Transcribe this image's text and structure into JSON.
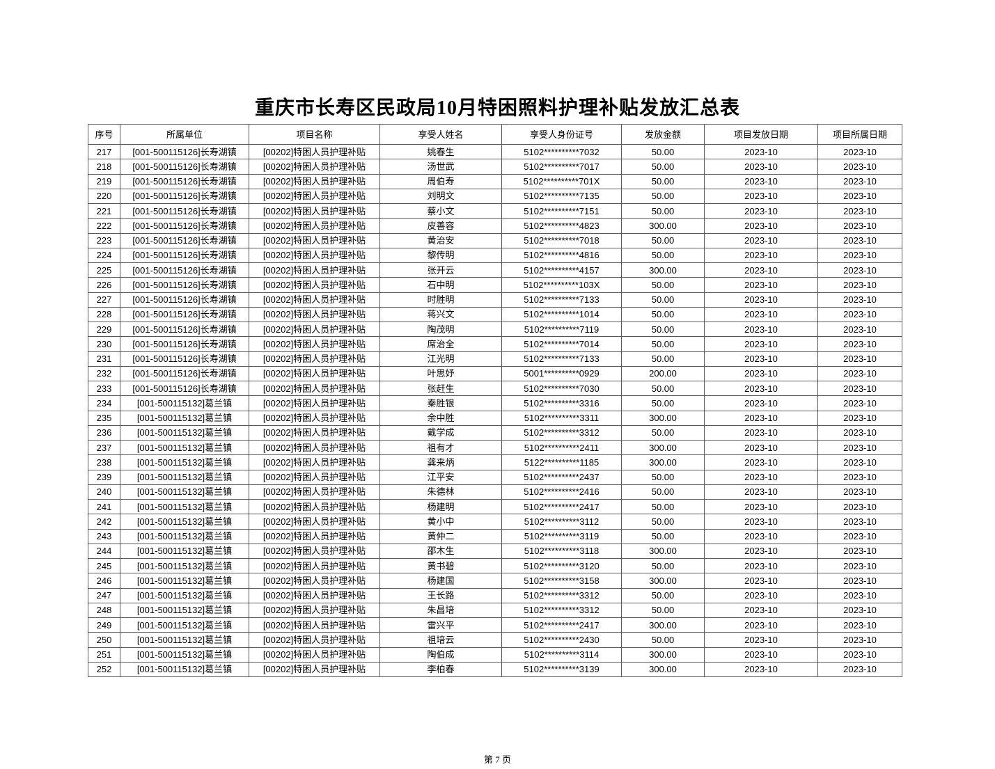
{
  "page": {
    "title": "重庆市长寿区民政局10月特困照料护理补贴发放汇总表",
    "footer": "第 7 页"
  },
  "table": {
    "headers": [
      "序号",
      "所属单位",
      "项目名称",
      "享受人姓名",
      "享受人身份证号",
      "发放金额",
      "项目发放日期",
      "项目所属日期"
    ],
    "rows": [
      [
        "217",
        "[001-500115126]长寿湖镇",
        "[00202]特困人员护理补贴",
        "姚春生",
        "5102**********7032",
        "50.00",
        "2023-10",
        "2023-10"
      ],
      [
        "218",
        "[001-500115126]长寿湖镇",
        "[00202]特困人员护理补贴",
        "汤世武",
        "5102**********7017",
        "50.00",
        "2023-10",
        "2023-10"
      ],
      [
        "219",
        "[001-500115126]长寿湖镇",
        "[00202]特困人员护理补贴",
        "周伯寿",
        "5102**********701X",
        "50.00",
        "2023-10",
        "2023-10"
      ],
      [
        "220",
        "[001-500115126]长寿湖镇",
        "[00202]特困人员护理补贴",
        "刘明文",
        "5102**********7135",
        "50.00",
        "2023-10",
        "2023-10"
      ],
      [
        "221",
        "[001-500115126]长寿湖镇",
        "[00202]特困人员护理补贴",
        "蔡小文",
        "5102**********7151",
        "50.00",
        "2023-10",
        "2023-10"
      ],
      [
        "222",
        "[001-500115126]长寿湖镇",
        "[00202]特困人员护理补贴",
        "皮善容",
        "5102**********4823",
        "300.00",
        "2023-10",
        "2023-10"
      ],
      [
        "223",
        "[001-500115126]长寿湖镇",
        "[00202]特困人员护理补贴",
        "黄治安",
        "5102**********7018",
        "50.00",
        "2023-10",
        "2023-10"
      ],
      [
        "224",
        "[001-500115126]长寿湖镇",
        "[00202]特困人员护理补贴",
        "黎传明",
        "5102**********4816",
        "50.00",
        "2023-10",
        "2023-10"
      ],
      [
        "225",
        "[001-500115126]长寿湖镇",
        "[00202]特困人员护理补贴",
        "张开云",
        "5102**********4157",
        "300.00",
        "2023-10",
        "2023-10"
      ],
      [
        "226",
        "[001-500115126]长寿湖镇",
        "[00202]特困人员护理补贴",
        "石中明",
        "5102**********103X",
        "50.00",
        "2023-10",
        "2023-10"
      ],
      [
        "227",
        "[001-500115126]长寿湖镇",
        "[00202]特困人员护理补贴",
        "时胜明",
        "5102**********7133",
        "50.00",
        "2023-10",
        "2023-10"
      ],
      [
        "228",
        "[001-500115126]长寿湖镇",
        "[00202]特困人员护理补贴",
        "蒋兴文",
        "5102**********1014",
        "50.00",
        "2023-10",
        "2023-10"
      ],
      [
        "229",
        "[001-500115126]长寿湖镇",
        "[00202]特困人员护理补贴",
        "陶茂明",
        "5102**********7119",
        "50.00",
        "2023-10",
        "2023-10"
      ],
      [
        "230",
        "[001-500115126]长寿湖镇",
        "[00202]特困人员护理补贴",
        "席治全",
        "5102**********7014",
        "50.00",
        "2023-10",
        "2023-10"
      ],
      [
        "231",
        "[001-500115126]长寿湖镇",
        "[00202]特困人员护理补贴",
        "江光明",
        "5102**********7133",
        "50.00",
        "2023-10",
        "2023-10"
      ],
      [
        "232",
        "[001-500115126]长寿湖镇",
        "[00202]特困人员护理补贴",
        "叶思妤",
        "5001**********0929",
        "200.00",
        "2023-10",
        "2023-10"
      ],
      [
        "233",
        "[001-500115126]长寿湖镇",
        "[00202]特困人员护理补贴",
        "张赶生",
        "5102**********7030",
        "50.00",
        "2023-10",
        "2023-10"
      ],
      [
        "234",
        "[001-500115132]葛兰镇",
        "[00202]特困人员护理补贴",
        "秦胜银",
        "5102**********3316",
        "50.00",
        "2023-10",
        "2023-10"
      ],
      [
        "235",
        "[001-500115132]葛兰镇",
        "[00202]特困人员护理补贴",
        "余中胜",
        "5102**********3311",
        "300.00",
        "2023-10",
        "2023-10"
      ],
      [
        "236",
        "[001-500115132]葛兰镇",
        "[00202]特困人员护理补贴",
        "戴学成",
        "5102**********3312",
        "50.00",
        "2023-10",
        "2023-10"
      ],
      [
        "237",
        "[001-500115132]葛兰镇",
        "[00202]特困人员护理补贴",
        "祖有才",
        "5102**********2411",
        "300.00",
        "2023-10",
        "2023-10"
      ],
      [
        "238",
        "[001-500115132]葛兰镇",
        "[00202]特困人员护理补贴",
        "龚来炳",
        "5122**********1185",
        "300.00",
        "2023-10",
        "2023-10"
      ],
      [
        "239",
        "[001-500115132]葛兰镇",
        "[00202]特困人员护理补贴",
        "江平安",
        "5102**********2437",
        "50.00",
        "2023-10",
        "2023-10"
      ],
      [
        "240",
        "[001-500115132]葛兰镇",
        "[00202]特困人员护理补贴",
        "朱德林",
        "5102**********2416",
        "50.00",
        "2023-10",
        "2023-10"
      ],
      [
        "241",
        "[001-500115132]葛兰镇",
        "[00202]特困人员护理补贴",
        "杨建明",
        "5102**********2417",
        "50.00",
        "2023-10",
        "2023-10"
      ],
      [
        "242",
        "[001-500115132]葛兰镇",
        "[00202]特困人员护理补贴",
        "黄小中",
        "5102**********3112",
        "50.00",
        "2023-10",
        "2023-10"
      ],
      [
        "243",
        "[001-500115132]葛兰镇",
        "[00202]特困人员护理补贴",
        "黄仲二",
        "5102**********3119",
        "50.00",
        "2023-10",
        "2023-10"
      ],
      [
        "244",
        "[001-500115132]葛兰镇",
        "[00202]特困人员护理补贴",
        "邵木生",
        "5102**********3118",
        "300.00",
        "2023-10",
        "2023-10"
      ],
      [
        "245",
        "[001-500115132]葛兰镇",
        "[00202]特困人员护理补贴",
        "黄书碧",
        "5102**********3120",
        "50.00",
        "2023-10",
        "2023-10"
      ],
      [
        "246",
        "[001-500115132]葛兰镇",
        "[00202]特困人员护理补贴",
        "杨建国",
        "5102**********3158",
        "300.00",
        "2023-10",
        "2023-10"
      ],
      [
        "247",
        "[001-500115132]葛兰镇",
        "[00202]特困人员护理补贴",
        "王长路",
        "5102**********3312",
        "50.00",
        "2023-10",
        "2023-10"
      ],
      [
        "248",
        "[001-500115132]葛兰镇",
        "[00202]特困人员护理补贴",
        "朱昌培",
        "5102**********3312",
        "50.00",
        "2023-10",
        "2023-10"
      ],
      [
        "249",
        "[001-500115132]葛兰镇",
        "[00202]特困人员护理补贴",
        "雷兴平",
        "5102**********2417",
        "300.00",
        "2023-10",
        "2023-10"
      ],
      [
        "250",
        "[001-500115132]葛兰镇",
        "[00202]特困人员护理补贴",
        "祖培云",
        "5102**********2430",
        "50.00",
        "2023-10",
        "2023-10"
      ],
      [
        "251",
        "[001-500115132]葛兰镇",
        "[00202]特困人员护理补贴",
        "陶伯成",
        "5102**********3114",
        "300.00",
        "2023-10",
        "2023-10"
      ],
      [
        "252",
        "[001-500115132]葛兰镇",
        "[00202]特困人员护理补贴",
        "李柏春",
        "5102**********3139",
        "300.00",
        "2023-10",
        "2023-10"
      ]
    ]
  }
}
